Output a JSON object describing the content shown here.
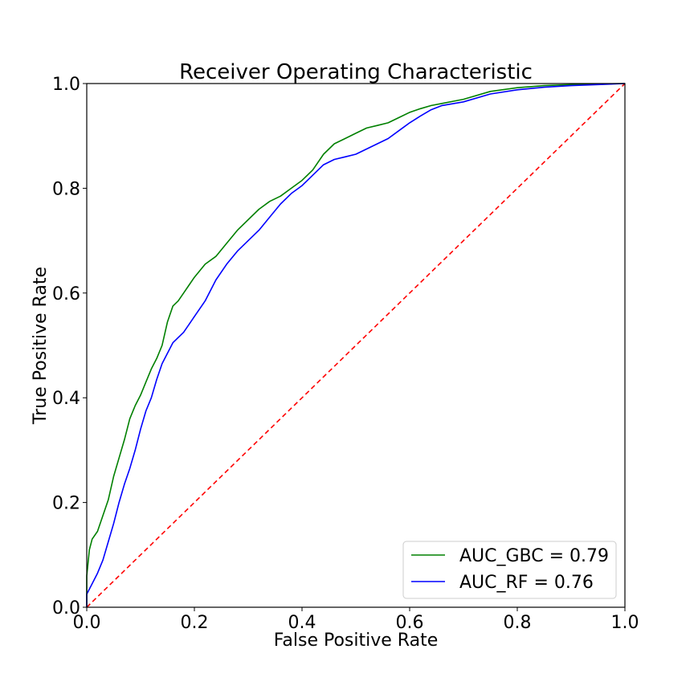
{
  "chart_data": {
    "type": "line",
    "title": "Receiver Operating Characteristic",
    "xlabel": "False Positive Rate",
    "ylabel": "True Positive Rate",
    "xlim": [
      0.0,
      1.0
    ],
    "ylim": [
      0.0,
      1.0
    ],
    "xticks": [
      "0.0",
      "0.2",
      "0.4",
      "0.6",
      "0.8",
      "1.0"
    ],
    "yticks": [
      "0.0",
      "0.2",
      "0.4",
      "0.6",
      "0.8",
      "1.0"
    ],
    "grid": false,
    "legend_position": "lower right",
    "series": [
      {
        "name": "AUC_GBC = 0.79",
        "color": "#008000",
        "style": "solid",
        "x": [
          0.0,
          0.0,
          0.005,
          0.01,
          0.02,
          0.03,
          0.04,
          0.05,
          0.06,
          0.07,
          0.08,
          0.09,
          0.1,
          0.11,
          0.12,
          0.13,
          0.14,
          0.15,
          0.16,
          0.17,
          0.18,
          0.19,
          0.2,
          0.22,
          0.24,
          0.26,
          0.28,
          0.3,
          0.32,
          0.34,
          0.36,
          0.38,
          0.4,
          0.42,
          0.44,
          0.46,
          0.48,
          0.5,
          0.52,
          0.54,
          0.56,
          0.58,
          0.6,
          0.62,
          0.64,
          0.66,
          0.7,
          0.75,
          0.8,
          0.85,
          0.9,
          1.0
        ],
        "y": [
          0.0,
          0.06,
          0.11,
          0.13,
          0.145,
          0.175,
          0.205,
          0.25,
          0.285,
          0.32,
          0.36,
          0.385,
          0.405,
          0.43,
          0.455,
          0.475,
          0.5,
          0.545,
          0.575,
          0.585,
          0.6,
          0.615,
          0.63,
          0.655,
          0.67,
          0.695,
          0.72,
          0.74,
          0.76,
          0.775,
          0.785,
          0.8,
          0.815,
          0.835,
          0.865,
          0.885,
          0.895,
          0.905,
          0.915,
          0.92,
          0.925,
          0.935,
          0.945,
          0.952,
          0.958,
          0.962,
          0.97,
          0.985,
          0.992,
          0.996,
          0.998,
          1.0
        ]
      },
      {
        "name": "AUC_RF = 0.76",
        "color": "#0000ff",
        "style": "solid",
        "x": [
          0.0,
          0.0,
          0.01,
          0.02,
          0.03,
          0.04,
          0.05,
          0.06,
          0.07,
          0.08,
          0.09,
          0.1,
          0.11,
          0.12,
          0.13,
          0.14,
          0.15,
          0.16,
          0.17,
          0.18,
          0.19,
          0.2,
          0.22,
          0.24,
          0.26,
          0.28,
          0.3,
          0.32,
          0.34,
          0.36,
          0.38,
          0.4,
          0.42,
          0.44,
          0.46,
          0.48,
          0.5,
          0.52,
          0.54,
          0.56,
          0.58,
          0.6,
          0.62,
          0.64,
          0.66,
          0.7,
          0.75,
          0.8,
          0.85,
          0.9,
          0.95,
          1.0
        ],
        "y": [
          0.0,
          0.025,
          0.045,
          0.065,
          0.09,
          0.125,
          0.16,
          0.2,
          0.235,
          0.265,
          0.3,
          0.34,
          0.375,
          0.4,
          0.435,
          0.465,
          0.485,
          0.505,
          0.515,
          0.525,
          0.54,
          0.555,
          0.585,
          0.625,
          0.655,
          0.68,
          0.7,
          0.72,
          0.745,
          0.77,
          0.79,
          0.805,
          0.825,
          0.845,
          0.855,
          0.86,
          0.865,
          0.875,
          0.885,
          0.895,
          0.91,
          0.925,
          0.938,
          0.95,
          0.958,
          0.965,
          0.98,
          0.988,
          0.993,
          0.996,
          0.998,
          1.0
        ]
      },
      {
        "name": "",
        "color": "#ff0000",
        "style": "dashed",
        "x": [
          0.0,
          1.0
        ],
        "y": [
          0.0,
          1.0
        ]
      }
    ]
  }
}
